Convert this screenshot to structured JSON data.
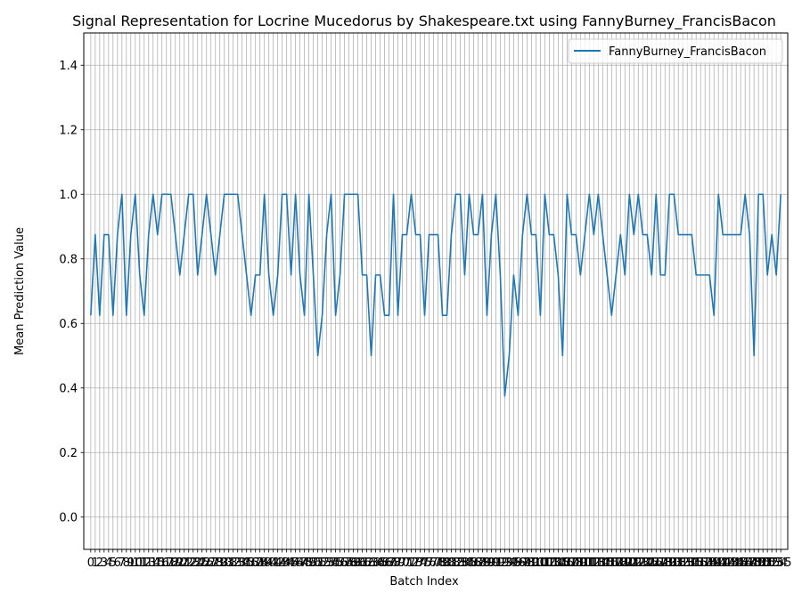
{
  "chart_data": {
    "type": "line",
    "title": "Signal Representation for Locrine Mucedorus by Shakespeare.txt using FannyBurney_FrancisBacon",
    "xlabel": "Batch Index",
    "ylabel": "Mean Prediction Value",
    "xlim": [
      -1.57,
      156.57
    ],
    "ylim": [
      -0.1,
      1.5
    ],
    "yticks": [
      0.0,
      0.2,
      0.4,
      0.6,
      0.8,
      1.0,
      1.2,
      1.4
    ],
    "x_start": 0,
    "x_end": 155,
    "grid": true,
    "legend_position": "upper-right",
    "series": [
      {
        "name": "FannyBurney_FrancisBacon",
        "color": "#1f77b4",
        "values": [
          0.625,
          0.875,
          0.625,
          0.875,
          0.875,
          0.625,
          0.875,
          1.0,
          0.625,
          0.875,
          1.0,
          0.75,
          0.625,
          0.875,
          1.0,
          0.875,
          1.0,
          1.0,
          1.0,
          0.875,
          0.75,
          0.875,
          1.0,
          1.0,
          0.75,
          0.875,
          1.0,
          0.875,
          0.75,
          0.875,
          1.0,
          1.0,
          1.0,
          1.0,
          0.875,
          0.75,
          0.625,
          0.75,
          0.75,
          1.0,
          0.75,
          0.625,
          0.75,
          1.0,
          1.0,
          0.75,
          1.0,
          0.75,
          0.625,
          1.0,
          0.75,
          0.5,
          0.625,
          0.875,
          1.0,
          0.625,
          0.75,
          1.0,
          1.0,
          1.0,
          1.0,
          0.75,
          0.75,
          0.5,
          0.75,
          0.75,
          0.625,
          0.625,
          1.0,
          0.625,
          0.875,
          0.875,
          1.0,
          0.875,
          0.875,
          0.625,
          0.875,
          0.875,
          0.875,
          0.625,
          0.625,
          0.875,
          1.0,
          1.0,
          0.75,
          1.0,
          0.875,
          0.875,
          1.0,
          0.625,
          0.875,
          1.0,
          0.75,
          0.375,
          0.5,
          0.75,
          0.625,
          0.875,
          1.0,
          0.875,
          0.875,
          0.625,
          1.0,
          0.875,
          0.875,
          0.75,
          0.5,
          1.0,
          0.875,
          0.875,
          0.75,
          0.875,
          1.0,
          0.875,
          1.0,
          0.875,
          0.75,
          0.625,
          0.75,
          0.875,
          0.75,
          1.0,
          0.875,
          1.0,
          0.875,
          0.875,
          0.75,
          1.0,
          0.75,
          0.75,
          1.0,
          1.0,
          0.875,
          0.875,
          0.875,
          0.875,
          0.75,
          0.75,
          0.75,
          0.75,
          0.625,
          1.0,
          0.875,
          0.875,
          0.875,
          0.875,
          0.875,
          1.0,
          0.875,
          0.5,
          1.0,
          1.0,
          0.75,
          0.875,
          0.75,
          1.0
        ]
      }
    ]
  }
}
